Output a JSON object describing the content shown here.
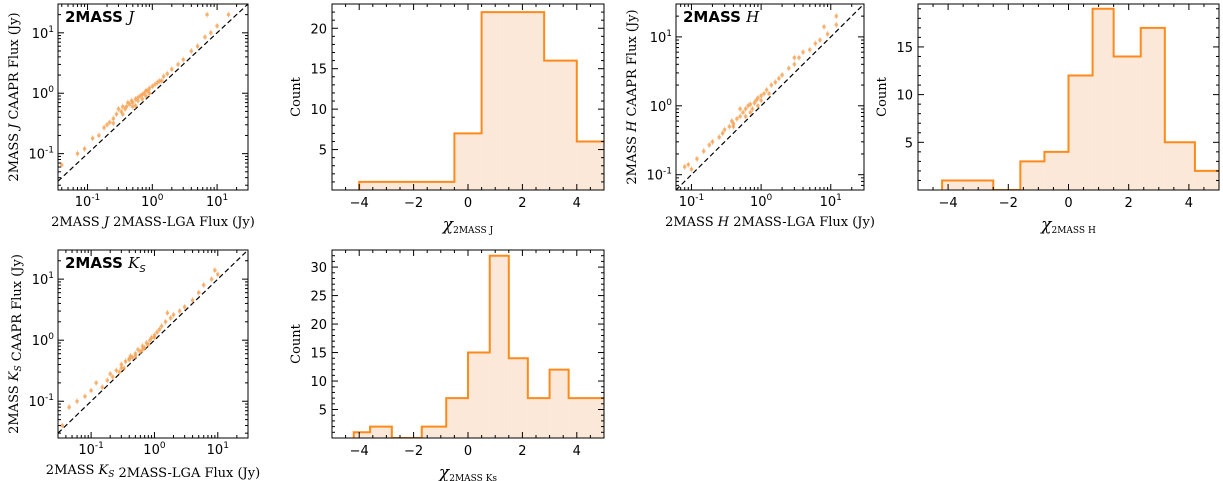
{
  "colors": {
    "accent": "#ff8a1c",
    "fill": "#fce8d8",
    "point": "#f5a050"
  },
  "chart_data": [
    {
      "id": "scatter_J",
      "type": "scatter",
      "panel_title": "2MASS J",
      "xlabel": "2MASS J 2MASS-LGA Flux (Jy)",
      "ylabel": "2MASS J CAAPR Flux (Jy)",
      "xscale": "log",
      "yscale": "log",
      "xlim": [
        0.035,
        30
      ],
      "ylim": [
        0.025,
        30
      ],
      "xticks": [
        0.1,
        1,
        10
      ],
      "yticks": [
        0.1,
        1,
        10
      ],
      "xticklabels": [
        "10^-1",
        "10^0",
        "10^1"
      ],
      "yticklabels": [
        "10^-1",
        "10^0",
        "10^1"
      ],
      "reference_line": "one-to-one dashed",
      "points": [
        [
          0.04,
          0.065
        ],
        [
          0.07,
          0.1
        ],
        [
          0.09,
          0.12
        ],
        [
          0.12,
          0.18
        ],
        [
          0.15,
          0.2
        ],
        [
          0.18,
          0.27
        ],
        [
          0.2,
          0.3
        ],
        [
          0.22,
          0.33
        ],
        [
          0.25,
          0.38
        ],
        [
          0.28,
          0.45
        ],
        [
          0.3,
          0.55
        ],
        [
          0.33,
          0.5
        ],
        [
          0.35,
          0.6
        ],
        [
          0.38,
          0.55
        ],
        [
          0.4,
          0.6
        ],
        [
          0.42,
          0.7
        ],
        [
          0.45,
          0.65
        ],
        [
          0.48,
          0.75
        ],
        [
          0.5,
          0.7
        ],
        [
          0.55,
          0.8
        ],
        [
          0.6,
          0.85
        ],
        [
          0.65,
          0.9
        ],
        [
          0.7,
          0.95
        ],
        [
          0.75,
          1.0
        ],
        [
          0.8,
          1.1
        ],
        [
          0.85,
          1.1
        ],
        [
          0.9,
          1.2
        ],
        [
          1.0,
          1.3
        ],
        [
          1.1,
          1.4
        ],
        [
          1.2,
          1.5
        ],
        [
          1.3,
          1.6
        ],
        [
          1.5,
          1.9
        ],
        [
          1.7,
          2.1
        ],
        [
          2.0,
          2.5
        ],
        [
          2.5,
          3.0
        ],
        [
          3.0,
          3.6
        ],
        [
          4.0,
          5.0
        ],
        [
          5.0,
          6.0
        ],
        [
          6.5,
          8.5
        ],
        [
          8.0,
          10.0
        ],
        [
          10.0,
          13.0
        ],
        [
          0.5,
          0.6
        ],
        [
          0.6,
          0.75
        ],
        [
          0.7,
          0.8
        ],
        [
          0.25,
          0.32
        ],
        [
          0.9,
          1.0
        ],
        [
          1.4,
          1.6
        ],
        [
          0.8,
          0.9
        ],
        [
          0.35,
          0.45
        ],
        [
          0.55,
          0.62
        ],
        [
          7.0,
          20.0
        ],
        [
          15.0,
          20.0
        ]
      ]
    },
    {
      "id": "hist_J",
      "type": "histogram",
      "xlabel": "χ2MASS J",
      "ylabel": "Count",
      "xlim": [
        -5,
        5
      ],
      "ylim": [
        0,
        23
      ],
      "xticks": [
        -4,
        -2,
        0,
        2,
        4
      ],
      "yticks": [
        5,
        10,
        15,
        20
      ],
      "edges": [
        -4,
        -0.5,
        0.5,
        1.2,
        2.8,
        4,
        5
      ],
      "counts": [
        1,
        7,
        22,
        22,
        16,
        6
      ]
    },
    {
      "id": "scatter_H",
      "type": "scatter",
      "panel_title": "2MASS H",
      "xlabel": "2MASS H 2MASS-LGA Flux (Jy)",
      "ylabel": "2MASS H CAAPR Flux (Jy)",
      "xscale": "log",
      "yscale": "log",
      "xlim": [
        0.06,
        30
      ],
      "ylim": [
        0.06,
        30
      ],
      "xticks": [
        0.1,
        1,
        10
      ],
      "yticks": [
        0.1,
        1,
        10
      ],
      "xticklabels": [
        "10^-1",
        "10^0",
        "10^1"
      ],
      "yticklabels": [
        "10^-1",
        "10^0",
        "10^1"
      ],
      "reference_line": "one-to-one dashed",
      "points": [
        [
          0.08,
          0.13
        ],
        [
          0.09,
          0.14
        ],
        [
          0.1,
          0.12
        ],
        [
          0.12,
          0.17
        ],
        [
          0.15,
          0.22
        ],
        [
          0.18,
          0.27
        ],
        [
          0.2,
          0.3
        ],
        [
          0.25,
          0.35
        ],
        [
          0.28,
          0.4
        ],
        [
          0.3,
          0.45
        ],
        [
          0.35,
          0.5
        ],
        [
          0.38,
          0.6
        ],
        [
          0.4,
          0.55
        ],
        [
          0.45,
          0.65
        ],
        [
          0.5,
          0.7
        ],
        [
          0.5,
          0.9
        ],
        [
          0.55,
          0.8
        ],
        [
          0.6,
          0.9
        ],
        [
          0.65,
          1.0
        ],
        [
          0.7,
          1.05
        ],
        [
          0.75,
          0.9
        ],
        [
          0.8,
          1.1
        ],
        [
          0.85,
          1.2
        ],
        [
          0.9,
          1.3
        ],
        [
          1.0,
          1.4
        ],
        [
          1.1,
          1.5
        ],
        [
          1.2,
          1.7
        ],
        [
          1.4,
          2.0
        ],
        [
          1.6,
          2.2
        ],
        [
          1.8,
          2.5
        ],
        [
          2.0,
          2.8
        ],
        [
          2.5,
          3.5
        ],
        [
          3.0,
          4.0
        ],
        [
          3.5,
          5.0
        ],
        [
          4.0,
          6.0
        ],
        [
          5.0,
          6.5
        ],
        [
          6.0,
          8.0
        ],
        [
          7.0,
          9.0
        ],
        [
          9.0,
          11.0
        ],
        [
          12.0,
          15.0
        ],
        [
          0.6,
          0.7
        ],
        [
          0.7,
          0.8
        ],
        [
          0.4,
          0.5
        ],
        [
          1.0,
          1.2
        ],
        [
          1.3,
          1.5
        ],
        [
          0.9,
          1.0
        ],
        [
          3.0,
          5.0
        ],
        [
          8.0,
          14.0
        ],
        [
          12.0,
          20.0
        ]
      ]
    },
    {
      "id": "hist_H",
      "type": "histogram",
      "xlabel": "χ2MASS H",
      "ylabel": "Count",
      "xlim": [
        -5,
        5
      ],
      "ylim": [
        0,
        19.5
      ],
      "xticks": [
        -4,
        -2,
        0,
        2,
        4
      ],
      "yticks": [
        5,
        10,
        15
      ],
      "edges": [
        -4.2,
        -2.5,
        -1.6,
        -0.8,
        0,
        0.8,
        1.5,
        2.4,
        3.2,
        4.2,
        5
      ],
      "counts": [
        1,
        0,
        3,
        4,
        12,
        19,
        14,
        17,
        5,
        2
      ]
    },
    {
      "id": "scatter_Ks",
      "type": "scatter",
      "panel_title": "2MASS KS",
      "xlabel": "2MASS KS 2MASS-LGA Flux (Jy)",
      "ylabel": "2MASS KS CAAPR Flux (Jy)",
      "xscale": "log",
      "yscale": "log",
      "xlim": [
        0.03,
        30
      ],
      "ylim": [
        0.025,
        30
      ],
      "xticks": [
        0.1,
        1,
        10
      ],
      "yticks": [
        0.1,
        1,
        10
      ],
      "xticklabels": [
        "10^-1",
        "10^0",
        "10^1"
      ],
      "yticklabels": [
        "10^-1",
        "10^0",
        "10^1"
      ],
      "reference_line": "one-to-one dashed",
      "points": [
        [
          0.035,
          0.04
        ],
        [
          0.045,
          0.08
        ],
        [
          0.06,
          0.1
        ],
        [
          0.08,
          0.12
        ],
        [
          0.1,
          0.15
        ],
        [
          0.12,
          0.2
        ],
        [
          0.15,
          0.17
        ],
        [
          0.18,
          0.22
        ],
        [
          0.2,
          0.28
        ],
        [
          0.22,
          0.25
        ],
        [
          0.25,
          0.32
        ],
        [
          0.28,
          0.3
        ],
        [
          0.3,
          0.4
        ],
        [
          0.33,
          0.35
        ],
        [
          0.35,
          0.45
        ],
        [
          0.4,
          0.5
        ],
        [
          0.42,
          0.55
        ],
        [
          0.45,
          0.52
        ],
        [
          0.5,
          0.6
        ],
        [
          0.55,
          0.7
        ],
        [
          0.6,
          0.65
        ],
        [
          0.65,
          0.8
        ],
        [
          0.7,
          0.75
        ],
        [
          0.75,
          0.9
        ],
        [
          0.8,
          0.85
        ],
        [
          0.85,
          1.0
        ],
        [
          0.9,
          1.1
        ],
        [
          1.0,
          1.2
        ],
        [
          1.1,
          1.35
        ],
        [
          1.2,
          1.5
        ],
        [
          1.3,
          1.7
        ],
        [
          1.5,
          2.0
        ],
        [
          1.8,
          2.3
        ],
        [
          2.0,
          2.6
        ],
        [
          2.5,
          3.0
        ],
        [
          3.0,
          3.5
        ],
        [
          4.0,
          4.5
        ],
        [
          5.0,
          6.0
        ],
        [
          6.0,
          8.0
        ],
        [
          8.0,
          10.0
        ],
        [
          10.0,
          12.0
        ],
        [
          0.5,
          0.55
        ],
        [
          0.65,
          0.7
        ],
        [
          0.3,
          0.35
        ],
        [
          1.0,
          1.1
        ],
        [
          0.4,
          0.48
        ],
        [
          1.6,
          2.8
        ],
        [
          9.0,
          14.0
        ]
      ]
    },
    {
      "id": "hist_Ks",
      "type": "histogram",
      "xlabel": "χ2MASS Ks",
      "ylabel": "Count",
      "xlim": [
        -5,
        5
      ],
      "ylim": [
        0,
        33
      ],
      "xticks": [
        -4,
        -2,
        0,
        2,
        4
      ],
      "yticks": [
        5,
        10,
        15,
        20,
        25,
        30
      ],
      "edges": [
        -4.2,
        -3.6,
        -2.8,
        -1.7,
        -0.8,
        0,
        0.8,
        1.5,
        2.2,
        3.0,
        3.7,
        4.3,
        5
      ],
      "counts": [
        1,
        2,
        0,
        2,
        7,
        15,
        32,
        14,
        7,
        12,
        7,
        7
      ]
    }
  ]
}
